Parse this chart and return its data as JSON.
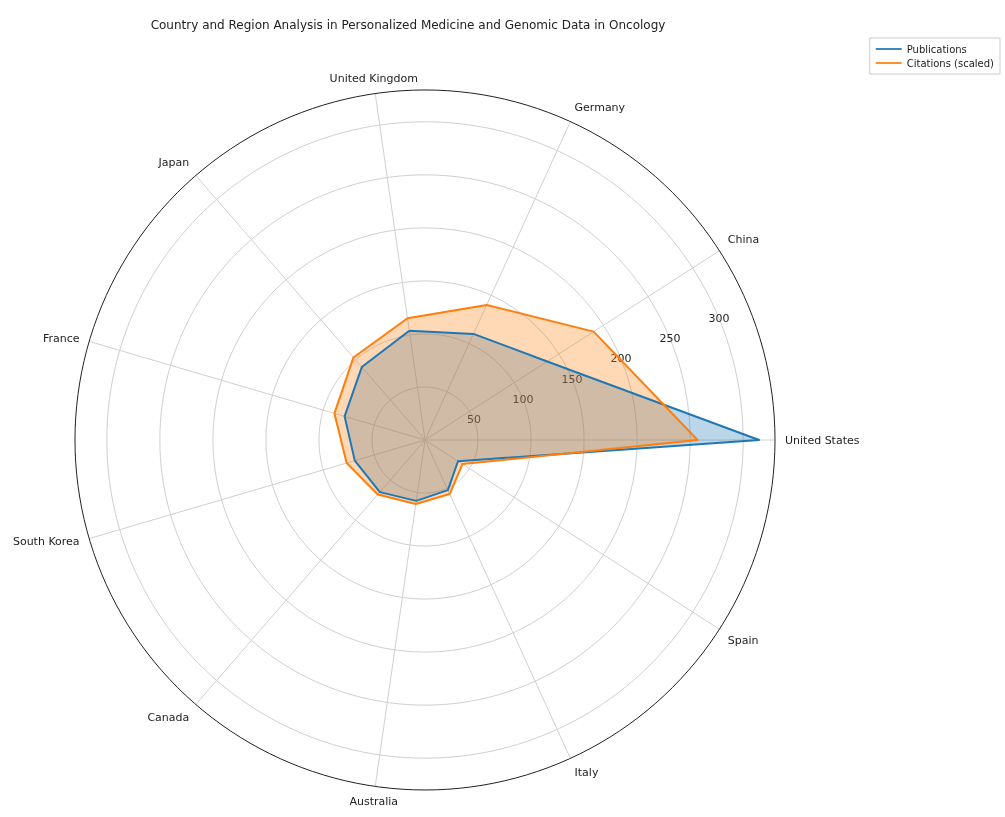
{
  "chart_data": {
    "type": "radar",
    "title": "Country and Region Analysis in Personalized Medicine and Genomic Data in Oncology",
    "categories": [
      "United Kingdom",
      "Germany",
      "China",
      "United States",
      "Spain",
      "Italy",
      "Australia",
      "Canada",
      "South Korea",
      "France",
      "Japan"
    ],
    "series": [
      {
        "name": "Publications",
        "color": "#1f77b4",
        "values": [
          104,
          110,
          137,
          315,
          37,
          52,
          58,
          65,
          69,
          79,
          91
        ]
      },
      {
        "name": "Citations (scaled)",
        "color": "#ff7f0e",
        "values": [
          116,
          140,
          189,
          257,
          42,
          56,
          61,
          68,
          77,
          89,
          103
        ]
      }
    ],
    "ylim": [
      0,
      330
    ],
    "yticks": [
      50,
      100,
      150,
      200,
      250,
      300
    ],
    "grid": true,
    "legend": "top right",
    "marker": "none",
    "line_style": "solid"
  }
}
